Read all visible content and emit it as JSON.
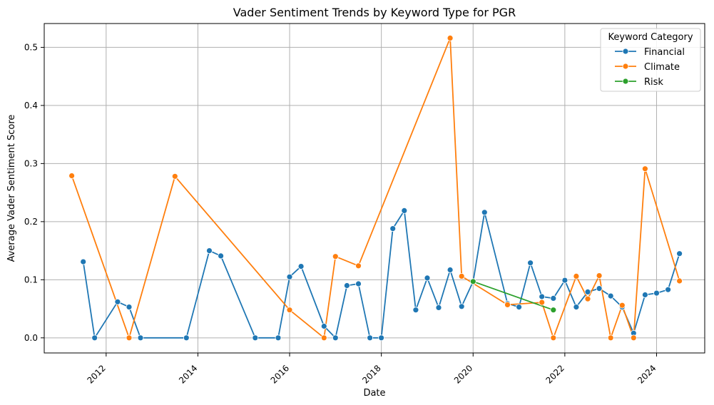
{
  "chart_data": {
    "type": "line",
    "title": "Vader Sentiment Trends by Keyword Type for PGR",
    "xlabel": "Date",
    "ylabel": "Average Vader Sentiment Score",
    "xlim": [
      2010.65,
      2025.05
    ],
    "ylim": [
      -0.026,
      0.541
    ],
    "x_ticks": [
      2012,
      2014,
      2016,
      2018,
      2020,
      2022,
      2024
    ],
    "y_ticks": [
      0.0,
      0.1,
      0.2,
      0.3,
      0.4,
      0.5
    ],
    "y_tick_labels": [
      "0.0",
      "0.1",
      "0.2",
      "0.3",
      "0.4",
      "0.5"
    ],
    "grid": true,
    "legend": {
      "title": "Keyword Category",
      "placement": "top-right"
    },
    "series": [
      {
        "name": "Financial",
        "color": "#1f77b4",
        "points": [
          [
            2011.5,
            0.131
          ],
          [
            2011.75,
            0.0
          ],
          [
            2012.25,
            0.062
          ],
          [
            2012.5,
            0.053
          ],
          [
            2012.75,
            0.0
          ],
          [
            2013.75,
            0.0
          ],
          [
            2014.25,
            0.15
          ],
          [
            2014.5,
            0.141
          ],
          [
            2015.25,
            0.0
          ],
          [
            2015.75,
            0.0
          ],
          [
            2016.0,
            0.105
          ],
          [
            2016.25,
            0.123
          ],
          [
            2016.75,
            0.02
          ],
          [
            2017.0,
            0.0
          ],
          [
            2017.25,
            0.09
          ],
          [
            2017.5,
            0.093
          ],
          [
            2017.75,
            0.0
          ],
          [
            2018.0,
            0.0
          ],
          [
            2018.25,
            0.188
          ],
          [
            2018.5,
            0.219
          ],
          [
            2018.75,
            0.048
          ],
          [
            2019.0,
            0.103
          ],
          [
            2019.25,
            0.052
          ],
          [
            2019.5,
            0.117
          ],
          [
            2019.75,
            0.054
          ],
          [
            2020.0,
            0.097
          ],
          [
            2020.25,
            0.216
          ],
          [
            2020.75,
            0.059
          ],
          [
            2021.0,
            0.053
          ],
          [
            2021.25,
            0.129
          ],
          [
            2021.5,
            0.071
          ],
          [
            2021.75,
            0.068
          ],
          [
            2022.0,
            0.099
          ],
          [
            2022.25,
            0.053
          ],
          [
            2022.5,
            0.079
          ],
          [
            2022.75,
            0.085
          ],
          [
            2023.0,
            0.072
          ],
          [
            2023.25,
            0.053
          ],
          [
            2023.5,
            0.008
          ],
          [
            2023.75,
            0.074
          ],
          [
            2024.0,
            0.077
          ],
          [
            2024.25,
            0.083
          ],
          [
            2024.5,
            0.145
          ]
        ]
      },
      {
        "name": "Climate",
        "color": "#ff7f0e",
        "points": [
          [
            2011.25,
            0.279
          ],
          [
            2012.5,
            0.0
          ],
          [
            2013.5,
            0.278
          ],
          [
            2016.0,
            0.048
          ],
          [
            2016.75,
            0.0
          ],
          [
            2017.0,
            0.14
          ],
          [
            2017.5,
            0.124
          ],
          [
            2019.5,
            0.516
          ],
          [
            2019.75,
            0.106
          ],
          [
            2020.75,
            0.057
          ],
          [
            2021.5,
            0.061
          ],
          [
            2021.75,
            0.0
          ],
          [
            2022.25,
            0.106
          ],
          [
            2022.5,
            0.067
          ],
          [
            2022.75,
            0.107
          ],
          [
            2023.0,
            0.0
          ],
          [
            2023.25,
            0.056
          ],
          [
            2023.5,
            0.0
          ],
          [
            2023.75,
            0.291
          ],
          [
            2024.5,
            0.098
          ]
        ]
      },
      {
        "name": "Risk",
        "color": "#2ca02c",
        "points": [
          [
            2020.0,
            0.097
          ],
          [
            2021.75,
            0.048
          ]
        ]
      }
    ]
  }
}
